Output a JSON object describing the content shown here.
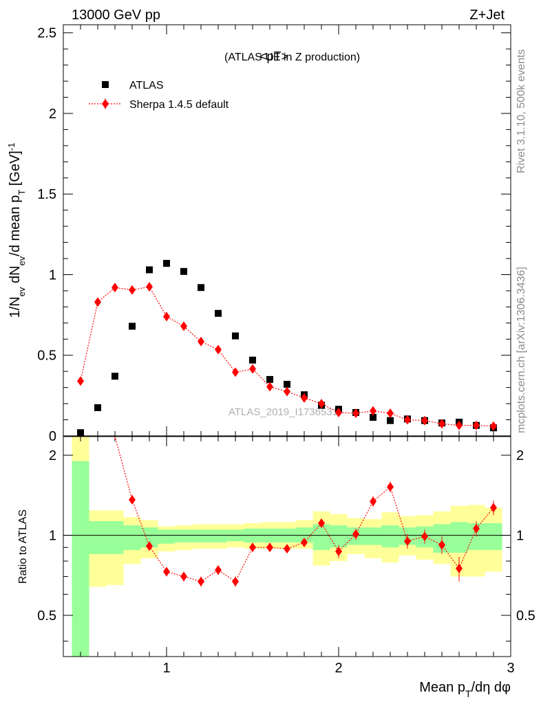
{
  "header": {
    "left": "13000 GeV pp",
    "right": "Z+Jet"
  },
  "plot_title": {
    "main": "<pT>",
    "sub": "(ATLAS UE in Z production)"
  },
  "side_labels": {
    "rivet": "Rivet 3.1.10,  500k events",
    "mcplots": "mcplots.cern.ch [arXiv:1306.3436]"
  },
  "watermark": "ATLAS_2019_I1736531",
  "chart_data": [
    {
      "type": "scatter",
      "panel": "main",
      "ylabel": "1/N_ev dN_ev/d mean p_T [GeV]^-1",
      "xlim": [
        0.4,
        3.0
      ],
      "ylim": [
        0,
        2.55
      ],
      "xticks": [
        1,
        2,
        3
      ],
      "yticks": [
        0,
        0.5,
        1,
        1.5,
        2,
        2.5
      ],
      "ytick_labels": [
        "0",
        "0.5",
        "1",
        "1.5",
        "2",
        "2.5"
      ],
      "x": [
        0.5,
        0.6,
        0.7,
        0.8,
        0.9,
        1.0,
        1.1,
        1.2,
        1.3,
        1.4,
        1.5,
        1.6,
        1.7,
        1.8,
        1.9,
        2.0,
        2.1,
        2.2,
        2.3,
        2.4,
        2.5,
        2.6,
        2.7,
        2.8,
        2.9
      ],
      "legend_position": "top-left",
      "series": [
        {
          "name": "ATLAS",
          "color": "#000000",
          "values": [
            0.02,
            0.175,
            0.37,
            0.68,
            1.03,
            1.07,
            1.02,
            0.92,
            0.76,
            0.62,
            0.47,
            0.35,
            0.32,
            0.255,
            0.19,
            0.165,
            0.145,
            0.115,
            0.095,
            0.105,
            0.095,
            0.08,
            0.085,
            0.065,
            0.05
          ]
        },
        {
          "name": "Sherpa 1.4.5 default",
          "color": "#ff0000",
          "values": [
            0.34,
            0.83,
            0.92,
            0.905,
            0.925,
            0.74,
            0.68,
            0.585,
            0.535,
            0.395,
            0.415,
            0.305,
            0.275,
            0.235,
            0.2,
            0.145,
            0.14,
            0.155,
            0.14,
            0.1,
            0.095,
            0.075,
            0.065,
            0.065,
            0.06
          ],
          "errors": [
            0.02,
            0.02,
            0.02,
            0.02,
            0.02,
            0.02,
            0.02,
            0.02,
            0.02,
            0.02,
            0.015,
            0.015,
            0.015,
            0.01,
            0.01,
            0.01,
            0.01,
            0.01,
            0.01,
            0.01,
            0.01,
            0.01,
            0.01,
            0.01,
            0.01
          ]
        }
      ]
    },
    {
      "type": "line",
      "panel": "ratio",
      "ylabel": "Ratio to ATLAS",
      "xlabel": "Mean p_T/dη dφ",
      "xlim": [
        0.4,
        3.0
      ],
      "ylim": [
        0.35,
        2.35
      ],
      "xticks": [
        1,
        2,
        3
      ],
      "xtick_labels": [
        "1",
        "2",
        "3"
      ],
      "yticks": [
        0.5,
        1,
        2
      ],
      "ytick_labels": [
        "0.5",
        "1",
        "2"
      ],
      "reference_line": 1,
      "bins": [
        [
          0.45,
          0.55
        ],
        [
          0.55,
          0.65
        ],
        [
          0.65,
          0.75
        ],
        [
          0.75,
          0.85
        ],
        [
          0.85,
          0.95
        ],
        [
          0.95,
          1.05
        ],
        [
          1.05,
          1.15
        ],
        [
          1.15,
          1.25
        ],
        [
          1.25,
          1.35
        ],
        [
          1.35,
          1.45
        ],
        [
          1.45,
          1.55
        ],
        [
          1.55,
          1.65
        ],
        [
          1.65,
          1.75
        ],
        [
          1.75,
          1.85
        ],
        [
          1.85,
          1.95
        ],
        [
          1.95,
          2.05
        ],
        [
          2.05,
          2.15
        ],
        [
          2.15,
          2.25
        ],
        [
          2.25,
          2.35
        ],
        [
          2.35,
          2.45
        ],
        [
          2.45,
          2.55
        ],
        [
          2.55,
          2.65
        ],
        [
          2.65,
          2.75
        ],
        [
          2.75,
          2.85
        ],
        [
          2.85,
          2.95
        ]
      ],
      "band_inner": {
        "color": "#99ff99",
        "low": [
          0.35,
          0.85,
          0.85,
          0.88,
          0.9,
          0.93,
          0.94,
          0.94,
          0.94,
          0.95,
          0.94,
          0.94,
          0.94,
          0.94,
          0.88,
          0.9,
          0.92,
          0.92,
          0.9,
          0.92,
          0.9,
          0.86,
          0.86,
          0.88,
          0.88
        ],
        "high": [
          1.9,
          1.13,
          1.13,
          1.09,
          1.07,
          1.05,
          1.05,
          1.05,
          1.05,
          1.05,
          1.06,
          1.06,
          1.06,
          1.07,
          1.1,
          1.09,
          1.07,
          1.07,
          1.09,
          1.07,
          1.08,
          1.1,
          1.12,
          1.11,
          1.11
        ]
      },
      "band_outer": {
        "color": "#ffff99",
        "low": [
          0.35,
          0.64,
          0.65,
          0.78,
          0.82,
          0.87,
          0.88,
          0.89,
          0.89,
          0.9,
          0.89,
          0.89,
          0.89,
          0.89,
          0.77,
          0.8,
          0.85,
          0.82,
          0.79,
          0.84,
          0.81,
          0.78,
          0.7,
          0.7,
          0.73
        ],
        "high": [
          2.35,
          1.24,
          1.24,
          1.17,
          1.14,
          1.08,
          1.09,
          1.1,
          1.1,
          1.1,
          1.11,
          1.12,
          1.12,
          1.14,
          1.23,
          1.2,
          1.16,
          1.15,
          1.22,
          1.18,
          1.19,
          1.23,
          1.29,
          1.3,
          1.27
        ]
      },
      "series": [
        {
          "name": "Sherpa 1.4.5 default",
          "color": "#ff0000",
          "x": [
            0.7,
            0.8,
            0.9,
            1.0,
            1.1,
            1.2,
            1.3,
            1.4,
            1.5,
            1.6,
            1.7,
            1.8,
            1.9,
            2.0,
            2.1,
            2.2,
            2.3,
            2.4,
            2.5,
            2.6,
            2.7,
            2.8,
            2.9
          ],
          "values": [
            2.35,
            1.36,
            0.91,
            0.73,
            0.7,
            0.67,
            0.74,
            0.67,
            0.9,
            0.9,
            0.89,
            0.94,
            1.11,
            0.87,
            1.01,
            1.34,
            1.52,
            0.95,
            0.99,
            0.92,
            0.75,
            1.06,
            1.27
          ],
          "errors": [
            0.05,
            0.04,
            0.03,
            0.03,
            0.03,
            0.03,
            0.03,
            0.03,
            0.03,
            0.03,
            0.03,
            0.03,
            0.04,
            0.05,
            0.05,
            0.06,
            0.07,
            0.06,
            0.06,
            0.07,
            0.08,
            0.07,
            0.08
          ]
        }
      ]
    }
  ]
}
